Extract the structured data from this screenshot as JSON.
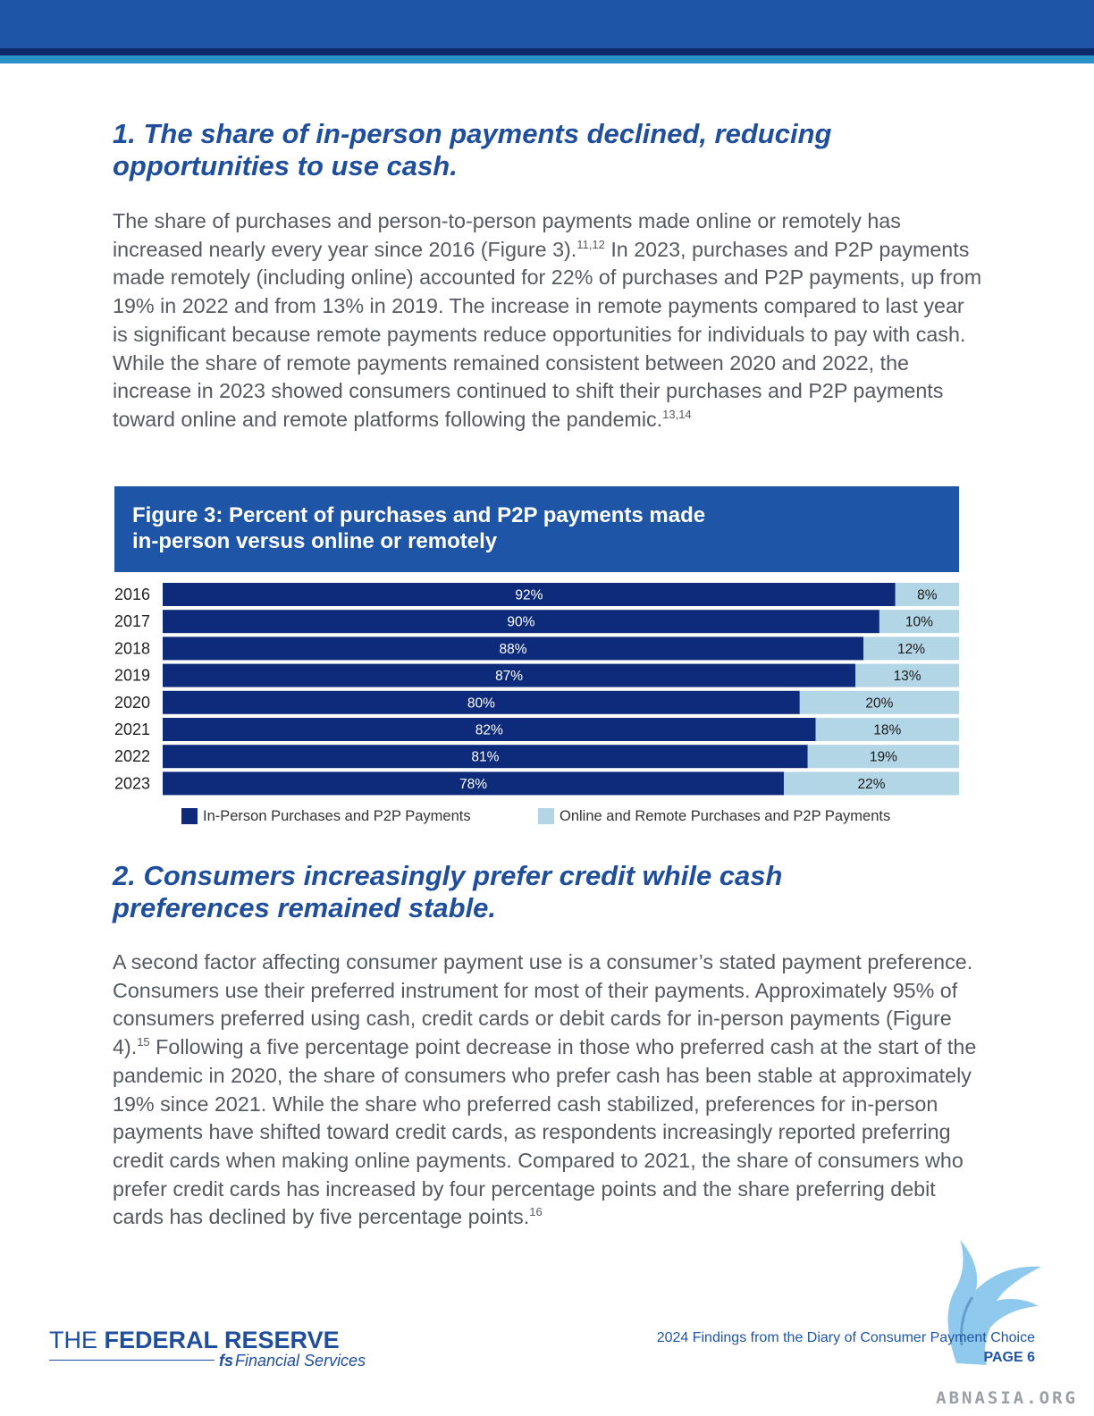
{
  "section1": {
    "heading_line1": "1. The share of in-person payments declined, reducing",
    "heading_line2": "opportunities to use cash.",
    "para_a": "The share of purchases and person-to-person payments made online or remotely has increased nearly every year since 2016 (Figure 3).",
    "sup_a": "11,12",
    "para_b": " In 2023, purchases and P2P payments made remotely (including online) accounted for 22% of purchases and P2P payments, up from 19% in 2022 and from 13% in 2019. The increase in remote payments compared to last year is significant because remote payments reduce opportunities for individuals to pay with cash. While the share of remote payments remained consistent between 2020 and 2022, the increase in 2023 showed consumers continued to shift their purchases and P2P payments toward online and remote platforms following the pandemic.",
    "sup_b": "13,14"
  },
  "figure3": {
    "title_line1": "Figure 3: Percent of purchases and P2P payments made",
    "title_line2": "in-person versus online or remotely"
  },
  "chart_data": {
    "type": "bar",
    "orientation": "horizontal",
    "stacked": true,
    "categories": [
      "2016",
      "2017",
      "2018",
      "2019",
      "2020",
      "2021",
      "2022",
      "2023"
    ],
    "series": [
      {
        "name": "In-Person Purchases and P2P Payments",
        "values": [
          92,
          90,
          88,
          87,
          80,
          82,
          81,
          78
        ],
        "color": "#0d2b7a"
      },
      {
        "name": "Online and Remote Purchases and P2P Payments",
        "values": [
          8,
          10,
          12,
          13,
          20,
          18,
          19,
          22
        ],
        "color": "#b3d6e6"
      }
    ],
    "value_suffix": "%",
    "xlim": [
      0,
      100
    ],
    "legend": "bottom"
  },
  "section2": {
    "heading_line1": "2. Consumers increasingly prefer credit while cash",
    "heading_line2": "preferences remained stable.",
    "para_a": "A second factor affecting consumer payment use is a consumer’s stated payment preference. Consumers use their preferred instrument for most of their payments. Approximately 95% of consumers preferred using cash, credit cards or debit cards for in-person payments (Figure 4).",
    "sup_a": "15",
    "para_b": " Following a five percentage point decrease in those who preferred cash at the start of the pandemic in 2020, the share of consumers who prefer cash has been stable at approximately 19% since 2021. While the share who preferred cash stabilized, preferences for in-person payments have shifted toward credit cards, as respondents increasingly reported preferring credit cards when making online payments. Compared to 2021, the share of consumers who prefer credit cards has increased by four percentage points and the share preferring debit cards has declined by five percentage points.",
    "sup_b": "16"
  },
  "footer": {
    "logo_the": "THE",
    "logo_name": "FEDERAL RESERVE",
    "logo_sub_icon": "fs",
    "logo_sub": "Financial Services",
    "report_title": "2024 Findings from the Diary of Consumer Payment Choice",
    "page_label": "PAGE 6"
  },
  "watermark": {
    "text": "ABNASIA.ORG"
  }
}
